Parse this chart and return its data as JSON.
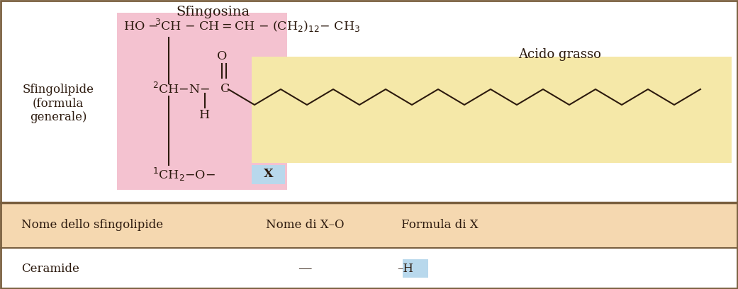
{
  "bg_color": "#ffffff",
  "pink_bg": "#f4c2d0",
  "yellow_bg": "#f5e8a8",
  "blue_bg": "#b8d8ec",
  "peach_bg": "#f5d8b0",
  "border_color": "#7a6040",
  "text_color": "#2c1a0e",
  "title": "Sfingosina",
  "label_left": "Sfingolipide\n(formula\ngenerale)",
  "label_acido": "Acido grasso",
  "col1_header": "Nome dello sfingolipide",
  "col2_header": "Nome di X–O",
  "col3_header": "Formula di X",
  "row1_col1": "Ceramide",
  "row1_col2": "—",
  "row1_col3": "–H",
  "fig_width": 10.41,
  "fig_height": 4.08,
  "dpi": 100
}
